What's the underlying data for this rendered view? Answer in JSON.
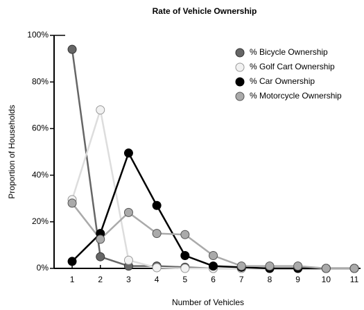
{
  "chart_data": {
    "type": "line",
    "title": "Rate of Vehicle Ownership",
    "x_label": "Number of Vehicles",
    "y_label": "Proportion of Households",
    "x": [
      1,
      2,
      3,
      4,
      5,
      6,
      7,
      8,
      9,
      10,
      11
    ],
    "xlim": [
      0.36,
      11.22
    ],
    "xticks": [
      1,
      2,
      3,
      4,
      5,
      6,
      7,
      8,
      9,
      10,
      11
    ],
    "ylim": [
      0,
      100
    ],
    "yticks": [
      {
        "value": 0,
        "label": "0%"
      },
      {
        "value": 20,
        "label": "20%"
      },
      {
        "value": 40,
        "label": "40%"
      },
      {
        "value": 60,
        "label": "60%"
      },
      {
        "value": 80,
        "label": "80%"
      },
      {
        "value": 100,
        "label": "100%"
      }
    ],
    "legend": "top-right",
    "series": [
      {
        "name": "% Bicycle Ownership",
        "color": "#666666",
        "values": [
          94,
          5,
          1,
          1,
          0.5,
          0,
          0,
          0,
          0,
          0,
          0
        ]
      },
      {
        "name": "% Golf Cart Ownership",
        "color": "#dddddd",
        "values": [
          29.5,
          68,
          3.5,
          0.3,
          0,
          0,
          0,
          0,
          0,
          0,
          0
        ]
      },
      {
        "name": "% Car Ownership",
        "color": "#000000",
        "values": [
          3,
          15,
          49.5,
          27,
          5.5,
          1,
          0.5,
          0,
          0,
          0,
          0
        ]
      },
      {
        "name": "% Motorcycle Ownership",
        "color": "#aaaaaa",
        "values": [
          28,
          12.5,
          24,
          15,
          14.5,
          5.5,
          1,
          1,
          1,
          0,
          0
        ]
      }
    ]
  }
}
